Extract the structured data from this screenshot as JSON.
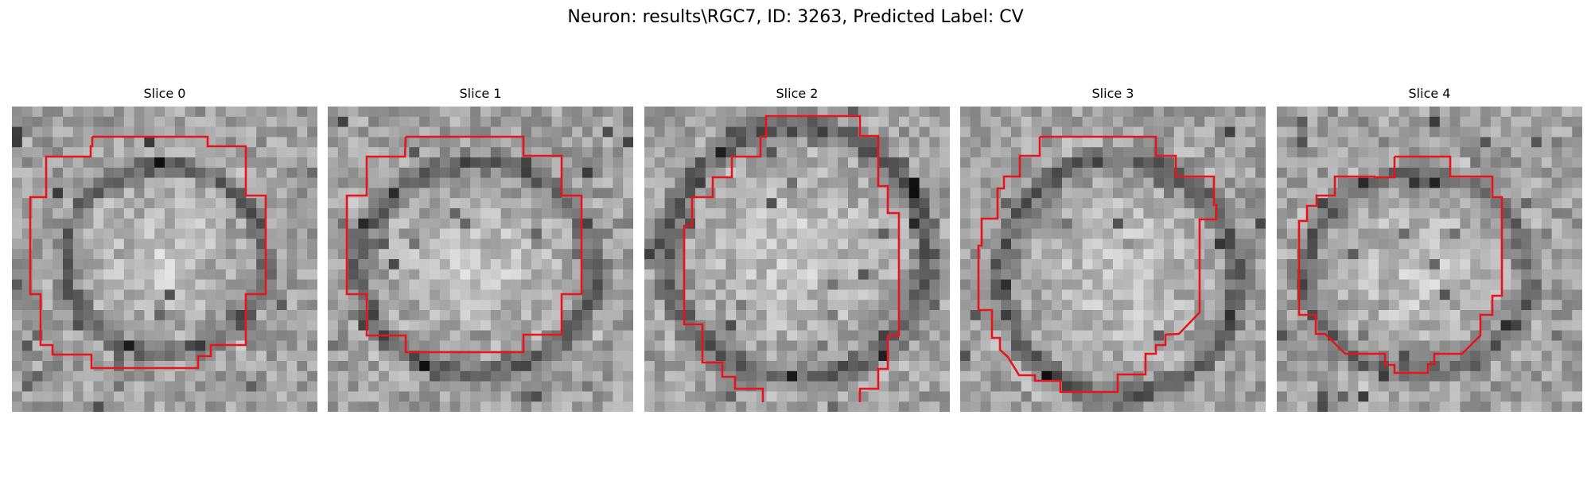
{
  "figure": {
    "title": "Neuron: results\\RGC7, ID: 3263, Predicted Label: CV"
  },
  "slices": [
    {
      "label": "Slice 0"
    },
    {
      "label": "Slice 1"
    },
    {
      "label": "Slice 2"
    },
    {
      "label": "Slice 3"
    },
    {
      "label": "Slice 4"
    }
  ],
  "colors": {
    "contour": "#e8141b",
    "background": "#ffffff"
  }
}
